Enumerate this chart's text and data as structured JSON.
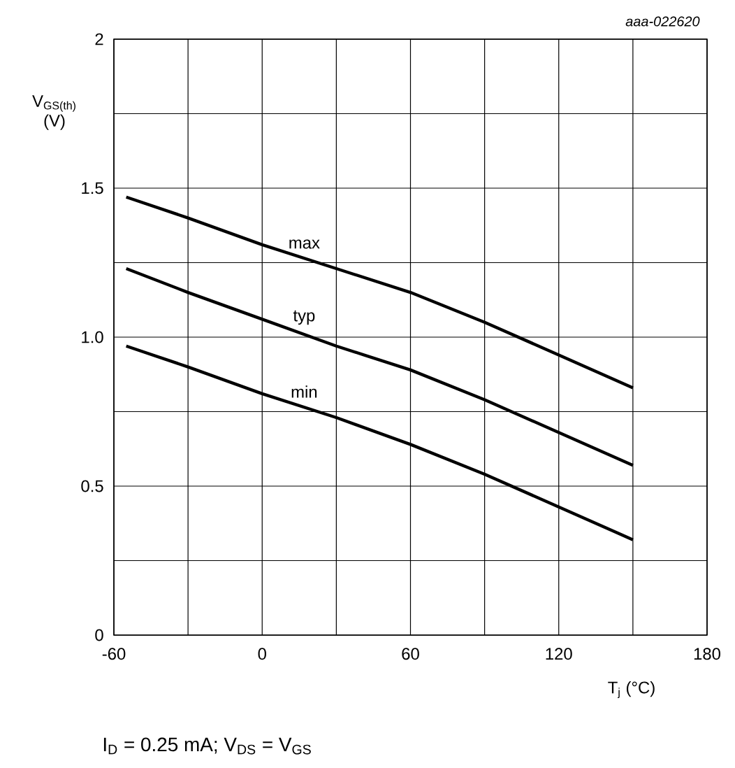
{
  "chart_data": {
    "type": "line",
    "xlabel": "T$_{j}$ (°C)",
    "ylabel": "V$_{GS(th)}$ (V)",
    "annotations": [
      "aaa-022620",
      "I$_{D}$ = 0.25 mA; V$_{DS}$ = V$_{GS}$"
    ],
    "x": [
      -55,
      -30,
      0,
      30,
      60,
      90,
      120,
      150
    ],
    "series": [
      {
        "name": "max",
        "color": "#000000",
        "values": [
          1.47,
          1.4,
          1.31,
          1.23,
          1.15,
          1.05,
          0.94,
          0.83
        ]
      },
      {
        "name": "typ",
        "color": "#000000",
        "values": [
          1.23,
          1.15,
          1.06,
          0.97,
          0.89,
          0.79,
          0.68,
          0.57
        ]
      },
      {
        "name": "min",
        "color": "#000000",
        "values": [
          0.97,
          0.9,
          0.81,
          0.73,
          0.64,
          0.54,
          0.43,
          0.32
        ]
      }
    ],
    "xlim": [
      -60,
      180
    ],
    "xticks": [
      -60,
      {
        "value": -30,
        "label": null
      },
      0,
      {
        "value": 30,
        "label": null
      },
      60,
      {
        "value": 90,
        "label": null
      },
      120,
      {
        "value": 150,
        "label": null
      },
      180
    ],
    "ylim": [
      0,
      2
    ],
    "yticks": [
      0,
      {
        "value": 0.25,
        "label": null
      },
      0.5,
      {
        "value": 0.75,
        "label": null
      },
      {
        "value": 1,
        "label": "1.0"
      },
      {
        "value": 1.25,
        "label": null
      },
      1.5,
      {
        "value": 1.75,
        "label": null
      },
      2
    ],
    "grid": true,
    "marker": "none",
    "line_style": "solid"
  }
}
